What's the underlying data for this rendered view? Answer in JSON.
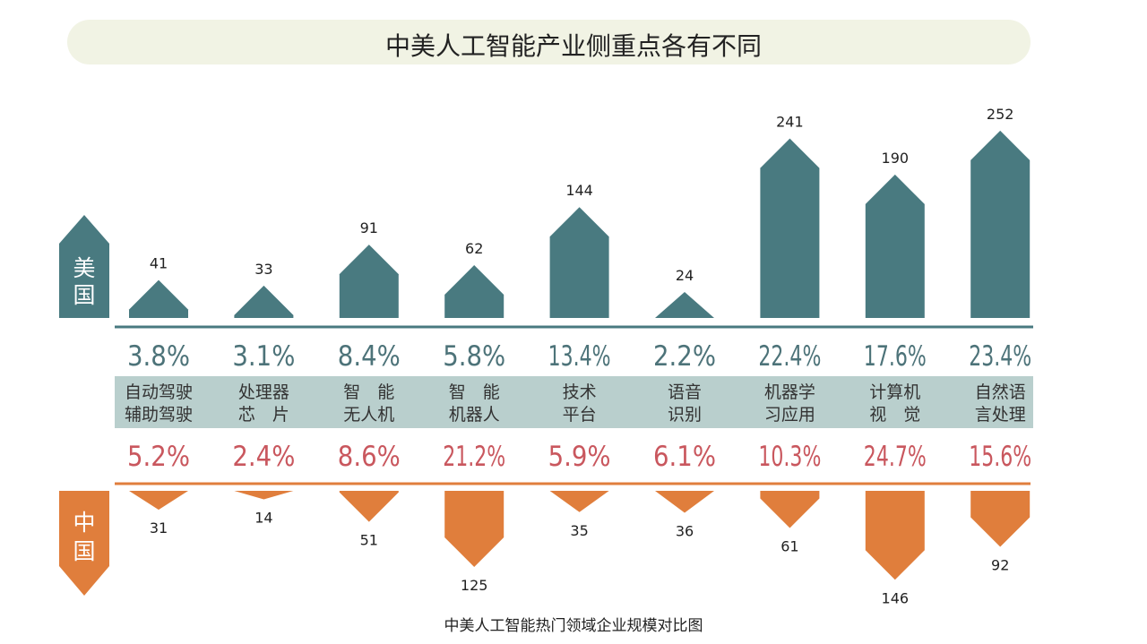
{
  "chart_data": {
    "type": "bar",
    "title": "中美人工智能产业侧重点各有不同",
    "caption": "中美人工智能热门领域企业规模对比图",
    "categories": [
      [
        "自动驾驶",
        "辅助驾驶"
      ],
      [
        "处理器",
        "芯　片"
      ],
      [
        "智　能",
        "无人机"
      ],
      [
        "智　能",
        "机器人"
      ],
      [
        "技术",
        "平台"
      ],
      [
        "语音",
        "识别"
      ],
      [
        "机器学",
        "习应用"
      ],
      [
        "计算机",
        "视　觉"
      ],
      [
        "自然语",
        "言处理"
      ]
    ],
    "series": [
      {
        "name": "美国",
        "values": [
          41,
          33,
          91,
          62,
          144,
          24,
          241,
          190,
          252
        ],
        "shares": [
          "3.8%",
          "3.1%",
          "8.4%",
          "5.8%",
          "13.4%",
          "2.2%",
          "22.4%",
          "17.6%",
          "23.4%"
        ],
        "color": "#497a80",
        "direction": "up"
      },
      {
        "name": "中国",
        "values": [
          31,
          14,
          51,
          125,
          35,
          36,
          61,
          146,
          92
        ],
        "shares": [
          "5.2%",
          "2.4%",
          "8.6%",
          "21.2%",
          "5.9%",
          "6.1%",
          "10.3%",
          "24.7%",
          "15.6%"
        ],
        "color": "#e07e3c",
        "share_color": "#c9575e",
        "direction": "down"
      }
    ],
    "band_color": "#b9cfcd",
    "title_background": "#f1f3e4"
  }
}
